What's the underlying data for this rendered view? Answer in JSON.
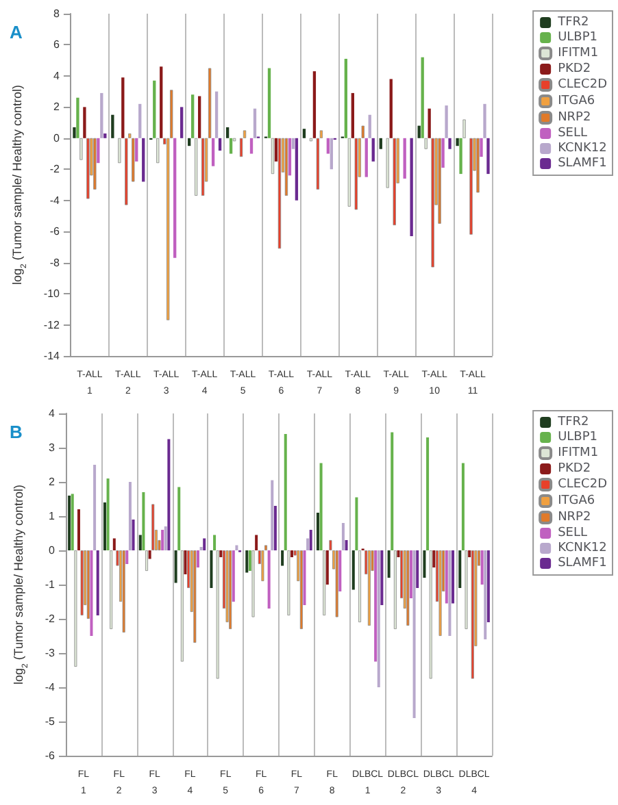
{
  "chart_data": [
    {
      "type": "bar",
      "title": "A",
      "ylabel": "log$_{2}$ (Tumor sample/ Healthy control)",
      "categories": [
        "T-ALL\n1",
        "T-ALL\n2",
        "T-ALL\n3",
        "T-ALL\n4",
        "T-ALL\n5",
        "T-ALL\n6",
        "T-ALL\n7",
        "T-ALL\n8",
        "T-ALL\n9",
        "T-ALL\n10",
        "T-ALL\n11"
      ],
      "series": [
        {
          "name": "TFR2",
          "color": "#1f3d1f",
          "values": [
            0.7,
            1.5,
            -0.1,
            -0.5,
            0.7,
            0.1,
            0.6,
            0.1,
            -0.7,
            0.8,
            -0.5
          ]
        },
        {
          "name": "ULBP1",
          "color": "#66b24c",
          "values": [
            2.6,
            null,
            3.7,
            2.8,
            -1.0,
            4.5,
            null,
            5.1,
            null,
            5.2,
            -2.3
          ]
        },
        {
          "name": "IFITM1",
          "color": "#dde6d6",
          "values": [
            -1.4,
            -1.6,
            -1.6,
            -3.7,
            -0.2,
            -2.3,
            -0.2,
            -4.4,
            -3.2,
            -0.7,
            1.2
          ]
        },
        {
          "name": "PKD2",
          "color": "#8b1a1a",
          "values": [
            2.0,
            3.9,
            4.6,
            2.7,
            null,
            -1.5,
            4.3,
            2.9,
            3.8,
            1.9,
            null
          ]
        },
        {
          "name": "CLEC2D",
          "color": "#e8402a",
          "values": [
            -3.9,
            -4.3,
            -0.4,
            -3.7,
            -1.2,
            -7.1,
            -3.3,
            -4.6,
            -5.6,
            -8.3,
            -6.2
          ]
        },
        {
          "name": "ITGA6",
          "color": "#f0a040",
          "values": [
            -2.4,
            0.3,
            -11.7,
            -2.8,
            0.5,
            -2.2,
            0.5,
            -2.5,
            -2.9,
            -4.3,
            -2.1
          ]
        },
        {
          "name": "NRP2",
          "color": "#e07a2a",
          "values": [
            -3.3,
            -2.8,
            3.1,
            4.5,
            null,
            -3.7,
            null,
            0.8,
            null,
            -5.5,
            -3.5
          ]
        },
        {
          "name": "SELL",
          "color": "#c060c0",
          "values": [
            -1.6,
            -1.5,
            -7.7,
            -1.8,
            -1.0,
            -2.4,
            -1.0,
            -2.5,
            -2.6,
            -1.9,
            -1.2
          ]
        },
        {
          "name": "KCNK12",
          "color": "#b8a8cc",
          "values": [
            2.9,
            2.2,
            null,
            3.0,
            1.9,
            -0.7,
            -2.0,
            1.5,
            null,
            2.1,
            2.2
          ]
        },
        {
          "name": "SLAMF1",
          "color": "#6a2a90",
          "values": [
            0.3,
            -2.8,
            2.0,
            -0.8,
            0.1,
            -4.0,
            -0.1,
            -1.5,
            -6.3,
            -0.7,
            -2.3
          ]
        }
      ],
      "ylim": [
        -14,
        8
      ],
      "yticks": [
        -14,
        -12,
        -10,
        -8,
        -6,
        -4,
        -2,
        0,
        2,
        4,
        6,
        8
      ],
      "grid": "x",
      "legend": "right"
    },
    {
      "type": "bar",
      "title": "B",
      "ylabel": "log$_{2}$ (Tumor sample/ Healthy control)",
      "categories": [
        "FL\n1",
        "FL\n2",
        "FL\n3",
        "FL\n4",
        "FL\n5",
        "FL\n6",
        "FL\n7",
        "FL\n8",
        "DLBCL\n1",
        "DLBCL\n2",
        "DLBCL\n3",
        "DLBCL\n4"
      ],
      "series": [
        {
          "name": "TFR2",
          "color": "#1f3d1f",
          "values": [
            1.6,
            1.4,
            0.45,
            -0.95,
            -1.1,
            -0.65,
            -0.45,
            1.1,
            -1.15,
            -0.8,
            -0.8,
            -1.1
          ]
        },
        {
          "name": "ULBP1",
          "color": "#66b24c",
          "values": [
            1.65,
            2.1,
            1.7,
            1.85,
            0.45,
            -0.6,
            3.4,
            2.55,
            1.55,
            3.45,
            3.3,
            2.55
          ]
        },
        {
          "name": "IFITM1",
          "color": "#dde6d6",
          "values": [
            -3.4,
            -2.3,
            -0.6,
            -3.25,
            -3.75,
            -1.95,
            -1.9,
            -1.9,
            -2.1,
            -2.3,
            -3.75,
            -2.3
          ]
        },
        {
          "name": "PKD2",
          "color": "#8b1a1a",
          "values": [
            1.2,
            0.35,
            -0.25,
            -0.7,
            -0.2,
            0.45,
            -0.2,
            -1.0,
            0.05,
            -0.2,
            -0.5,
            -0.2
          ]
        },
        {
          "name": "CLEC2D",
          "color": "#e8402a",
          "values": [
            -1.9,
            -0.45,
            1.35,
            -1.1,
            -1.7,
            -0.4,
            -0.15,
            0.3,
            -0.7,
            -1.4,
            -1.5,
            -3.75
          ]
        },
        {
          "name": "ITGA6",
          "color": "#f0a040",
          "values": [
            -1.6,
            -1.5,
            0.6,
            -1.8,
            -2.1,
            -0.9,
            -0.9,
            -0.55,
            -2.2,
            -1.7,
            -2.5,
            -2.8
          ]
        },
        {
          "name": "NRP2",
          "color": "#e07a2a",
          "values": [
            -2.0,
            -2.4,
            0.3,
            -2.7,
            -2.3,
            0.15,
            -2.3,
            -1.95,
            -0.6,
            -2.2,
            -1.2,
            -0.45
          ]
        },
        {
          "name": "SELL",
          "color": "#c060c0",
          "values": [
            -2.5,
            -0.4,
            0.6,
            -0.5,
            -1.5,
            -1.7,
            -1.6,
            -1.2,
            -3.25,
            -1.4,
            -1.55,
            -1.0
          ]
        },
        {
          "name": "KCNK12",
          "color": "#b8a8cc",
          "values": [
            2.5,
            2.0,
            0.7,
            0.1,
            0.15,
            2.05,
            0.35,
            0.8,
            -4.0,
            -4.9,
            -2.5,
            -2.6
          ]
        },
        {
          "name": "SLAMF1",
          "color": "#6a2a90",
          "values": [
            -1.9,
            0.9,
            3.25,
            0.35,
            -0.05,
            1.3,
            0.6,
            0.3,
            -1.6,
            -1.1,
            -1.55,
            -2.1
          ]
        }
      ],
      "ylim": [
        -6,
        4
      ],
      "yticks": [
        -6,
        -5,
        -4,
        -3,
        -2,
        -1,
        0,
        1,
        2,
        3,
        4
      ],
      "grid": "x",
      "legend": "right"
    }
  ]
}
